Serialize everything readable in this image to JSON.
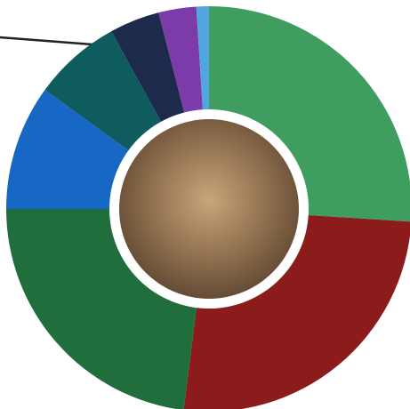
{
  "chart_data": {
    "type": "pie",
    "categories": [
      null,
      null,
      null,
      null,
      null,
      null,
      null,
      null
    ],
    "values": [
      26,
      26,
      23,
      10,
      7,
      4,
      3,
      1
    ],
    "colors": [
      "#3f9e5f",
      "#8c1c1c",
      "#1f6e3c",
      "#1668c4",
      "#0f5c5e",
      "#1e2a4c",
      "#7b3ba8",
      "#52a6e0"
    ]
  }
}
